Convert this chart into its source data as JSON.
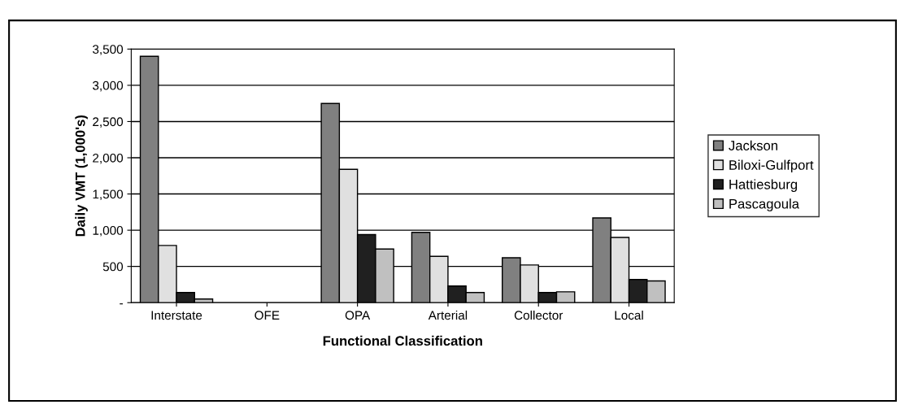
{
  "chart_data": {
    "type": "bar",
    "xlabel": "Functional Classification",
    "ylabel": "Daily VMT (1,000's)",
    "categories": [
      "Interstate",
      "OFE",
      "OPA",
      "Arterial",
      "Collector",
      "Local"
    ],
    "series": [
      {
        "name": "Jackson",
        "color": "#808080",
        "values": [
          3400,
          0,
          2750,
          970,
          620,
          1170
        ]
      },
      {
        "name": "Biloxi-Gulfport",
        "color": "#e0e0e0",
        "values": [
          790,
          0,
          1840,
          640,
          520,
          900
        ]
      },
      {
        "name": "Hattiesburg",
        "color": "#202020",
        "values": [
          140,
          0,
          940,
          230,
          140,
          320
        ]
      },
      {
        "name": "Pascagoula",
        "color": "#c0c0c0",
        "values": [
          50,
          0,
          740,
          140,
          150,
          300
        ]
      }
    ],
    "ylim": [
      0,
      3500
    ],
    "yticks": [
      {
        "value": 0,
        "label": "-"
      },
      {
        "value": 500,
        "label": "500"
      },
      {
        "value": 1000,
        "label": "1,000"
      },
      {
        "value": 1500,
        "label": "1,500"
      },
      {
        "value": 2000,
        "label": "2,000"
      },
      {
        "value": 2500,
        "label": "2,500"
      },
      {
        "value": 3000,
        "label": "3,000"
      },
      {
        "value": 3500,
        "label": "3,500"
      }
    ],
    "grid": "y",
    "legend": "right"
  }
}
